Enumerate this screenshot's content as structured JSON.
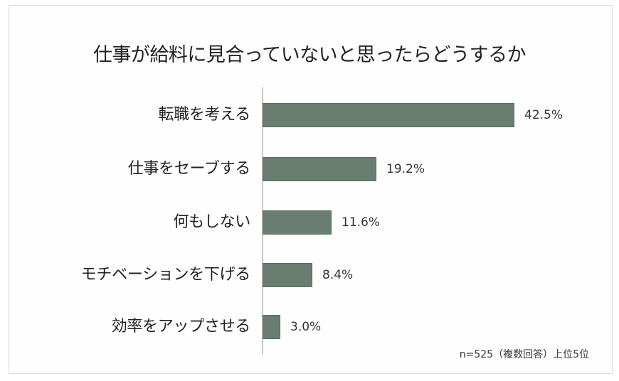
{
  "title": "仕事が給料に見合っていないと思ったらどうするか",
  "note": "n=525（複数回答）上位5位",
  "colors": {
    "bar": "#697d71",
    "axis": "#c9c9c9",
    "text": "#222222"
  },
  "chart_data": {
    "type": "bar",
    "orientation": "horizontal",
    "title": "仕事が給料に見合っていないと思ったらどうするか",
    "categories": [
      "転職を考える",
      "仕事をセーブする",
      "何もしない",
      "モチベーションを下げる",
      "効率をアップさせる"
    ],
    "values": [
      42.5,
      19.2,
      11.6,
      8.4,
      3.0
    ],
    "value_labels": [
      "42.5%",
      "19.2%",
      "11.6%",
      "8.4%",
      "3.0%"
    ],
    "unit": "%",
    "xlabel": "",
    "ylabel": "",
    "grid": false,
    "legend": null,
    "annotations": [
      "n=525（複数回答）上位5位"
    ]
  }
}
